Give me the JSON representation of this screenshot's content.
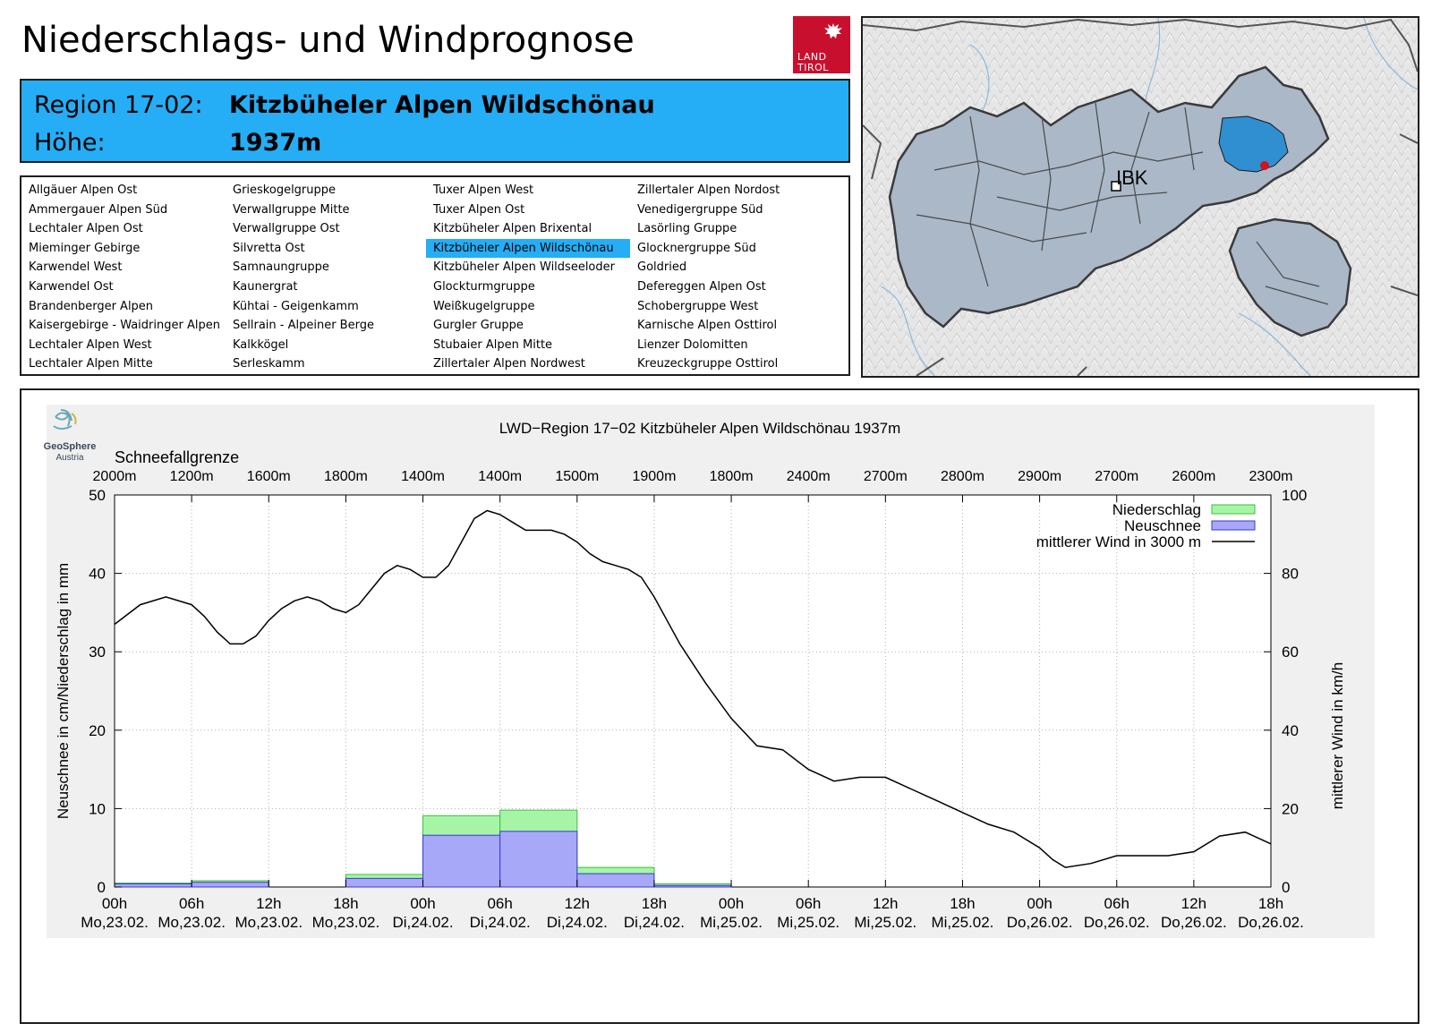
{
  "header": {
    "title": "Niederschlags- und Windprognose",
    "logo_text_line1": "LAND",
    "logo_text_line2": "TIROL"
  },
  "region": {
    "label": "Region 17-02:",
    "name": "Kitzbüheler Alpen Wildschönau",
    "height_label": "Höhe:",
    "height_value": "1937m",
    "color": "#25aef5"
  },
  "region_list": {
    "columns": [
      [
        "Allgäuer Alpen Ost",
        "Ammergauer Alpen Süd",
        "Lechtaler Alpen Ost",
        "Mieminger Gebirge",
        "Karwendel West",
        "Karwendel Ost",
        "Brandenberger Alpen",
        "Kaisergebirge - Waidringer Alpen",
        "Lechtaler Alpen West",
        "Lechtaler Alpen Mitte"
      ],
      [
        "Grieskogelgruppe",
        "Verwallgruppe Mitte",
        "Verwallgruppe Ost",
        "Silvretta Ost",
        "Samnaungruppe",
        "Kaunergrat",
        "Kühtai - Geigenkamm",
        "Sellrain - Alpeiner Berge",
        "Kalkkögel",
        "Serleskamm"
      ],
      [
        "Tuxer Alpen West",
        "Tuxer Alpen Ost",
        "Kitzbüheler Alpen Brixental",
        "Kitzbüheler Alpen Wildschönau",
        "Kitzbüheler Alpen Wildseeloder",
        "Glockturmgruppe",
        "Weißkugelgruppe",
        "Gurgler Gruppe",
        "Stubaier Alpen Mitte",
        "Zillertaler Alpen Nordwest"
      ],
      [
        "Zillertaler Alpen Nordost",
        "Venedigergruppe Süd",
        "Lasörling Gruppe",
        "Glocknergruppe Süd",
        "Goldried",
        "Defereggen Alpen Ost",
        "Schobergruppe West",
        "Karnische Alpen Osttirol",
        "Lienzer Dolomitten",
        "Kreuzeckgruppe Osttirol"
      ]
    ],
    "selected": "Kitzbüheler Alpen Wildschönau"
  },
  "map": {
    "city_label": "IBK",
    "highlight_color": "#2f8fd0",
    "marker_color": "#d0141e"
  },
  "chart_data": {
    "type": "bar+line",
    "title": "LWD−Region 17−02 Kitzbüheler Alpen Wildschönau 1937m",
    "source_logo_line1": "GeoSphere",
    "source_logo_line2": "Austria",
    "snowline_label": "Schneefallgrenze",
    "snowline": [
      "2000m",
      "1200m",
      "1600m",
      "1800m",
      "1400m",
      "1400m",
      "1500m",
      "1900m",
      "1800m",
      "2400m",
      "2700m",
      "2800m",
      "2900m",
      "2700m",
      "2600m",
      "2300m"
    ],
    "x_ticks": [
      [
        "00h",
        "Mo,23.02."
      ],
      [
        "06h",
        "Mo,23.02."
      ],
      [
        "12h",
        "Mo,23.02."
      ],
      [
        "18h",
        "Mo,23.02."
      ],
      [
        "00h",
        "Di,24.02."
      ],
      [
        "06h",
        "Di,24.02."
      ],
      [
        "12h",
        "Di,24.02."
      ],
      [
        "18h",
        "Di,24.02."
      ],
      [
        "00h",
        "Mi,25.02."
      ],
      [
        "06h",
        "Mi,25.02."
      ],
      [
        "12h",
        "Mi,25.02."
      ],
      [
        "18h",
        "Mi,25.02."
      ],
      [
        "00h",
        "Do,26.02."
      ],
      [
        "06h",
        "Do,26.02."
      ],
      [
        "12h",
        "Do,26.02."
      ],
      [
        "18h",
        "Do,26.02."
      ]
    ],
    "ylabel": "Neuschnee in cm/Niederschlag in mm",
    "ylim": [
      0,
      50
    ],
    "yticks": [
      0,
      10,
      20,
      30,
      40,
      50
    ],
    "y2label": "mittlerer Wind in km/h",
    "y2lim": [
      0,
      100
    ],
    "y2ticks": [
      0,
      20,
      40,
      60,
      80,
      100
    ],
    "legend_position": "top-right",
    "grid": true,
    "series": [
      {
        "name": "Niederschlag",
        "color": "#a6f5a6",
        "stroke": "#3fbf3f",
        "kind": "bar",
        "values": [
          0.5,
          0.8,
          0,
          1.6,
          9.1,
          9.8,
          2.5,
          0.4,
          0,
          0,
          0,
          0,
          0,
          0,
          0
        ]
      },
      {
        "name": "Neuschnee",
        "color": "#a8a8f8",
        "stroke": "#3a3ad0",
        "kind": "bar",
        "values": [
          0.4,
          0.6,
          0,
          1.1,
          6.6,
          7.1,
          1.7,
          0.2,
          0,
          0,
          0,
          0,
          0,
          0,
          0
        ]
      },
      {
        "name": "mittlerer Wind in 3000 m",
        "color": "#000000",
        "kind": "line",
        "axis": "right",
        "x_hours": [
          0,
          2,
          4,
          6,
          7,
          8,
          9,
          10,
          11,
          12,
          13,
          14,
          15,
          16,
          17,
          18,
          19,
          20,
          21,
          22,
          23,
          24,
          25,
          26,
          27,
          28,
          29,
          30,
          31,
          32,
          33,
          34,
          35,
          36,
          37,
          38,
          39,
          40,
          41,
          42,
          43,
          44,
          45,
          46,
          48,
          50,
          52,
          54,
          56,
          58,
          60,
          62,
          64,
          66,
          68,
          70,
          72,
          73,
          74,
          76,
          78,
          80,
          82,
          84,
          86,
          88,
          90
        ],
        "values": [
          67,
          72,
          74,
          72,
          69,
          65,
          62,
          62,
          64,
          68,
          71,
          73,
          74,
          73,
          71,
          70,
          72,
          76,
          80,
          82,
          81,
          79,
          79,
          82,
          88,
          94,
          96,
          95,
          93,
          91,
          91,
          91,
          90,
          88,
          85,
          83,
          82,
          81,
          79,
          74,
          68,
          62,
          57,
          52,
          43,
          36,
          35,
          30,
          27,
          28,
          28,
          25,
          22,
          19,
          16,
          14,
          10,
          7,
          5,
          6,
          8,
          8,
          8,
          9,
          13,
          14,
          11
        ]
      }
    ]
  }
}
